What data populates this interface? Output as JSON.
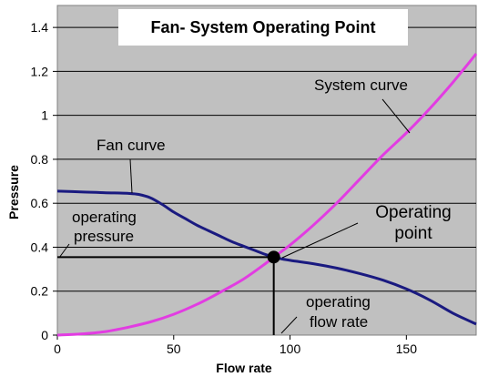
{
  "chart_data": {
    "type": "line",
    "title": "Fan- System Operating Point",
    "xlabel": "Flow rate",
    "ylabel": "Pressure",
    "xlim": [
      0,
      180
    ],
    "ylim": [
      0,
      1.5
    ],
    "x_ticks": [
      "0",
      "50",
      "100",
      "150"
    ],
    "y_ticks": [
      "0",
      "0.2",
      "0.4",
      "0.6",
      "0.8",
      "1",
      "1.2",
      "1.4"
    ],
    "grid": "horizontal",
    "series": [
      {
        "name": "Fan curve",
        "color": "#1a1a80",
        "x": [
          0,
          10,
          20,
          30,
          35,
          40,
          45,
          50,
          55,
          60,
          65,
          70,
          75,
          80,
          85,
          90,
          95,
          100,
          110,
          120,
          130,
          140,
          150,
          160,
          170,
          180
        ],
        "y": [
          0.655,
          0.652,
          0.648,
          0.645,
          0.64,
          0.625,
          0.595,
          0.56,
          0.53,
          0.5,
          0.475,
          0.45,
          0.425,
          0.405,
          0.385,
          0.365,
          0.35,
          0.34,
          0.325,
          0.305,
          0.28,
          0.25,
          0.21,
          0.16,
          0.1,
          0.05
        ]
      },
      {
        "name": "System curve",
        "color": "#e23ce2",
        "x": [
          0,
          10,
          20,
          30,
          40,
          50,
          60,
          70,
          80,
          90,
          93,
          100,
          110,
          120,
          130,
          140,
          150,
          160,
          170,
          180
        ],
        "y": [
          0.0,
          0.005,
          0.015,
          0.035,
          0.06,
          0.095,
          0.14,
          0.195,
          0.255,
          0.33,
          0.355,
          0.41,
          0.5,
          0.6,
          0.71,
          0.82,
          0.92,
          1.03,
          1.15,
          1.28
        ]
      }
    ],
    "operating_point": {
      "x": 93,
      "y": 0.355
    },
    "annotations": {
      "fan_curve": "Fan curve",
      "system_curve": "System curve",
      "operating_point_1": "Operating",
      "operating_point_2": "point",
      "op_pressure_1": "operating",
      "op_pressure_2": "pressure",
      "op_flow_1": "operating",
      "op_flow_2": "flow rate"
    }
  }
}
